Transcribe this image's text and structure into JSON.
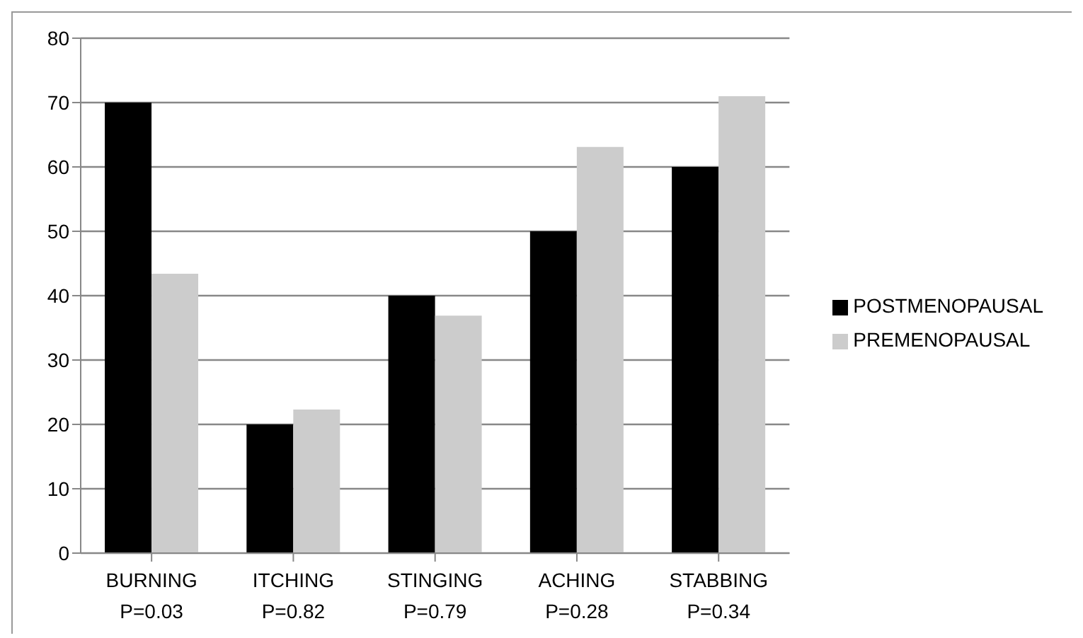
{
  "chart_data": {
    "type": "bar",
    "categories": [
      "BURNING\nP=0.03",
      "ITCHING\nP=0.82",
      "STINGING\nP=0.79",
      "ACHING\nP=0.28",
      "STABBING\nP=0.34"
    ],
    "series": [
      {
        "name": "POSTMENOPAUSAL",
        "color": "#000000",
        "values": [
          70,
          20,
          40,
          50,
          60
        ]
      },
      {
        "name": "PREMENOPAUSAL",
        "color": "#cccccc",
        "values": [
          43.4,
          22.3,
          36.9,
          63.1,
          71.0
        ]
      }
    ],
    "ylim": [
      0,
      80
    ],
    "yticks": [
      0,
      10,
      20,
      30,
      40,
      50,
      60,
      70,
      80
    ],
    "grid": "y",
    "legend": "right"
  }
}
